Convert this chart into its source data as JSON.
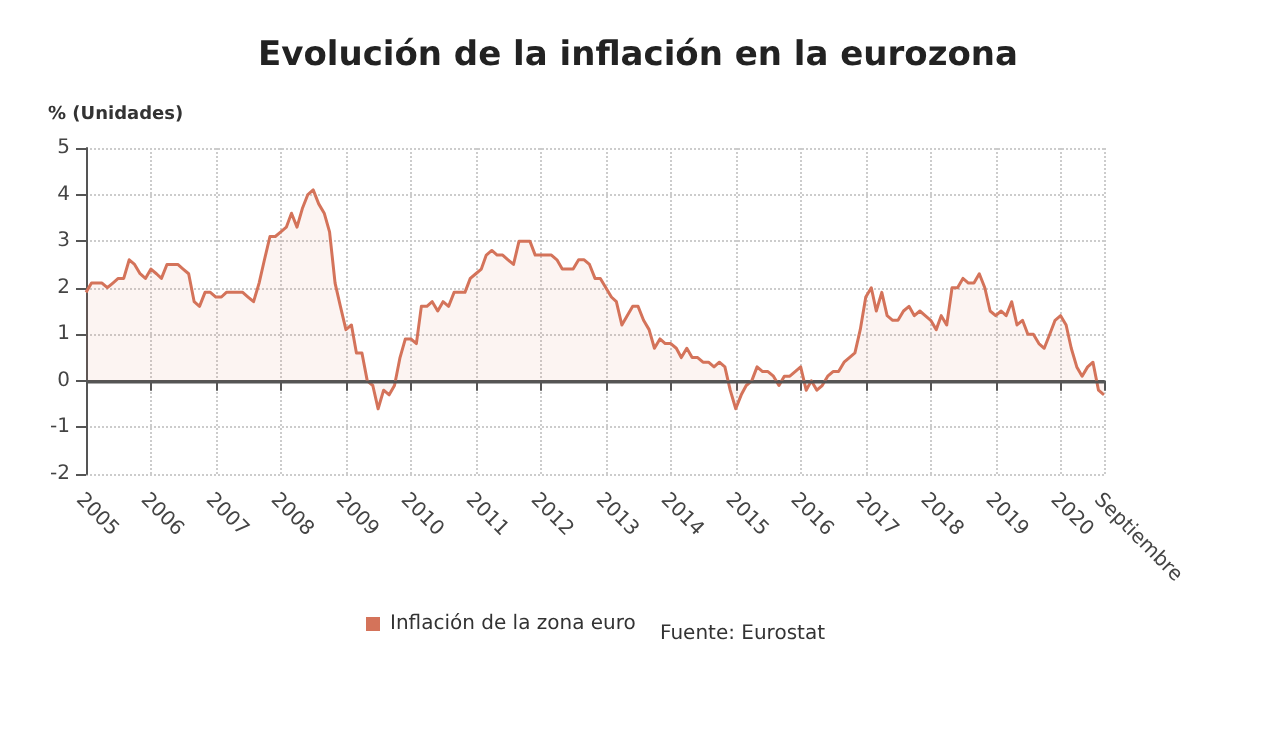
{
  "chart_data": {
    "type": "area",
    "title": "Evolución de la inflación en la eurozona",
    "ylabel": "% (Unidades)",
    "x": [
      "2005-01",
      "2005-02",
      "2005-03",
      "2005-04",
      "2005-05",
      "2005-06",
      "2005-07",
      "2005-08",
      "2005-09",
      "2005-10",
      "2005-11",
      "2005-12",
      "2006-01",
      "2006-02",
      "2006-03",
      "2006-04",
      "2006-05",
      "2006-06",
      "2006-07",
      "2006-08",
      "2006-09",
      "2006-10",
      "2006-11",
      "2006-12",
      "2007-01",
      "2007-02",
      "2007-03",
      "2007-04",
      "2007-05",
      "2007-06",
      "2007-07",
      "2007-08",
      "2007-09",
      "2007-10",
      "2007-11",
      "2007-12",
      "2008-01",
      "2008-02",
      "2008-03",
      "2008-04",
      "2008-05",
      "2008-06",
      "2008-07",
      "2008-08",
      "2008-09",
      "2008-10",
      "2008-11",
      "2008-12",
      "2009-01",
      "2009-02",
      "2009-03",
      "2009-04",
      "2009-05",
      "2009-06",
      "2009-07",
      "2009-08",
      "2009-09",
      "2009-10",
      "2009-11",
      "2009-12",
      "2010-01",
      "2010-02",
      "2010-03",
      "2010-04",
      "2010-05",
      "2010-06",
      "2010-07",
      "2010-08",
      "2010-09",
      "2010-10",
      "2010-11",
      "2010-12",
      "2011-01",
      "2011-02",
      "2011-03",
      "2011-04",
      "2011-05",
      "2011-06",
      "2011-07",
      "2011-08",
      "2011-09",
      "2011-10",
      "2011-11",
      "2011-12",
      "2012-01",
      "2012-02",
      "2012-03",
      "2012-04",
      "2012-05",
      "2012-06",
      "2012-07",
      "2012-08",
      "2012-09",
      "2012-10",
      "2012-11",
      "2012-12",
      "2013-01",
      "2013-02",
      "2013-03",
      "2013-04",
      "2013-05",
      "2013-06",
      "2013-07",
      "2013-08",
      "2013-09",
      "2013-10",
      "2013-11",
      "2013-12",
      "2014-01",
      "2014-02",
      "2014-03",
      "2014-04",
      "2014-05",
      "2014-06",
      "2014-07",
      "2014-08",
      "2014-09",
      "2014-10",
      "2014-11",
      "2014-12",
      "2015-01",
      "2015-02",
      "2015-03",
      "2015-04",
      "2015-05",
      "2015-06",
      "2015-07",
      "2015-08",
      "2015-09",
      "2015-10",
      "2015-11",
      "2015-12",
      "2016-01",
      "2016-02",
      "2016-03",
      "2016-04",
      "2016-05",
      "2016-06",
      "2016-07",
      "2016-08",
      "2016-09",
      "2016-10",
      "2016-11",
      "2016-12",
      "2017-01",
      "2017-02",
      "2017-03",
      "2017-04",
      "2017-05",
      "2017-06",
      "2017-07",
      "2017-08",
      "2017-09",
      "2017-10",
      "2017-11",
      "2017-12",
      "2018-01",
      "2018-02",
      "2018-03",
      "2018-04",
      "2018-05",
      "2018-06",
      "2018-07",
      "2018-08",
      "2018-09",
      "2018-10",
      "2018-11",
      "2018-12",
      "2019-01",
      "2019-02",
      "2019-03",
      "2019-04",
      "2019-05",
      "2019-06",
      "2019-07",
      "2019-08",
      "2019-09",
      "2019-10",
      "2019-11",
      "2019-12",
      "2020-01",
      "2020-02",
      "2020-03",
      "2020-04",
      "2020-05",
      "2020-06",
      "2020-07",
      "2020-08",
      "2020-09"
    ],
    "series": [
      {
        "name": "Inflación de la zona euro",
        "color": "#d4735a",
        "values": [
          1.9,
          2.1,
          2.1,
          2.1,
          2.0,
          2.1,
          2.2,
          2.2,
          2.6,
          2.5,
          2.3,
          2.2,
          2.4,
          2.3,
          2.2,
          2.5,
          2.5,
          2.5,
          2.4,
          2.3,
          1.7,
          1.6,
          1.9,
          1.9,
          1.8,
          1.8,
          1.9,
          1.9,
          1.9,
          1.9,
          1.8,
          1.7,
          2.1,
          2.6,
          3.1,
          3.1,
          3.2,
          3.3,
          3.6,
          3.3,
          3.7,
          4.0,
          4.1,
          3.8,
          3.6,
          3.2,
          2.1,
          1.6,
          1.1,
          1.2,
          0.6,
          0.6,
          0.0,
          -0.1,
          -0.6,
          -0.2,
          -0.3,
          -0.1,
          0.5,
          0.9,
          0.9,
          0.8,
          1.6,
          1.6,
          1.7,
          1.5,
          1.7,
          1.6,
          1.9,
          1.9,
          1.9,
          2.2,
          2.3,
          2.4,
          2.7,
          2.8,
          2.7,
          2.7,
          2.6,
          2.5,
          3.0,
          3.0,
          3.0,
          2.7,
          2.7,
          2.7,
          2.7,
          2.6,
          2.4,
          2.4,
          2.4,
          2.6,
          2.6,
          2.5,
          2.2,
          2.2,
          2.0,
          1.8,
          1.7,
          1.2,
          1.4,
          1.6,
          1.6,
          1.3,
          1.1,
          0.7,
          0.9,
          0.8,
          0.8,
          0.7,
          0.5,
          0.7,
          0.5,
          0.5,
          0.4,
          0.4,
          0.3,
          0.4,
          0.3,
          -0.2,
          -0.6,
          -0.3,
          -0.1,
          0.0,
          0.3,
          0.2,
          0.2,
          0.1,
          -0.1,
          0.1,
          0.1,
          0.2,
          0.3,
          -0.2,
          0.0,
          -0.2,
          -0.1,
          0.1,
          0.2,
          0.2,
          0.4,
          0.5,
          0.6,
          1.1,
          1.8,
          2.0,
          1.5,
          1.9,
          1.4,
          1.3,
          1.3,
          1.5,
          1.6,
          1.4,
          1.5,
          1.4,
          1.3,
          1.1,
          1.4,
          1.2,
          2.0,
          2.0,
          2.2,
          2.1,
          2.1,
          2.3,
          2.0,
          1.5,
          1.4,
          1.5,
          1.4,
          1.7,
          1.2,
          1.3,
          1.0,
          1.0,
          0.8,
          0.7,
          1.0,
          1.3,
          1.4,
          1.2,
          0.7,
          0.3,
          0.1,
          0.3,
          0.4,
          -0.2,
          -0.3
        ]
      }
    ],
    "xlim": [
      "2005-01",
      "2020-09"
    ],
    "xticks": [
      "2005",
      "2006",
      "2007",
      "2008",
      "2009",
      "2010",
      "2011",
      "2012",
      "2013",
      "2014",
      "2015",
      "2016",
      "2017",
      "2018",
      "2019",
      "2020",
      {
        "value": "2020-09",
        "label": "Septiembre"
      }
    ],
    "ylim": [
      -2,
      5
    ],
    "yticks": [
      -2,
      -1,
      0,
      1,
      2,
      3,
      4,
      5
    ],
    "ref_lines": [
      {
        "axis": "y",
        "value": 0,
        "color": "#555555"
      }
    ],
    "grid": true,
    "legend": "bottom",
    "marker": "none",
    "line_style": "solid",
    "annotations": [
      "Fuente: Eurostat"
    ]
  }
}
